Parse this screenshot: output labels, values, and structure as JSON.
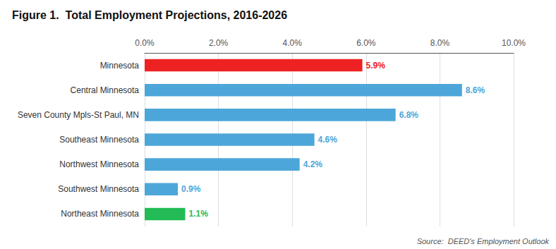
{
  "chart_data": {
    "type": "bar",
    "orientation": "horizontal",
    "title": "Figure 1.  Total Employment Projections, 2016-2026",
    "categories": [
      "Northeast Minnesota",
      "Southwest Minnesota",
      "Northwest Minnesota",
      "Southeast Minnesota",
      "Seven County Mpls-St Paul, MN",
      "Central Minnesota",
      "Minnesota"
    ],
    "values": [
      1.1,
      0.9,
      4.2,
      4.6,
      6.8,
      8.6,
      5.9
    ],
    "value_labels": [
      "1.1%",
      "0.9%",
      "4.2%",
      "4.6%",
      "6.8%",
      "8.6%",
      "5.9%"
    ],
    "colors": [
      "#22bb55",
      "#4da6d9",
      "#4da6d9",
      "#4da6d9",
      "#4da6d9",
      "#4da6d9",
      "#ee2222"
    ],
    "xlim": [
      0,
      10.0
    ],
    "xticks": [
      {
        "value": 0.0,
        "label": "0.0%"
      },
      {
        "value": 2.0,
        "label": "2.0%"
      },
      {
        "value": 4.0,
        "label": "4.0%"
      },
      {
        "value": 6.0,
        "label": "6.0%"
      },
      {
        "value": 8.0,
        "label": "8.0%"
      },
      {
        "value": 10.0,
        "label": "10.0%"
      }
    ],
    "grid": true,
    "data_labels": true,
    "annotations": [
      "Source:  DEED's Employment Outlook"
    ]
  }
}
